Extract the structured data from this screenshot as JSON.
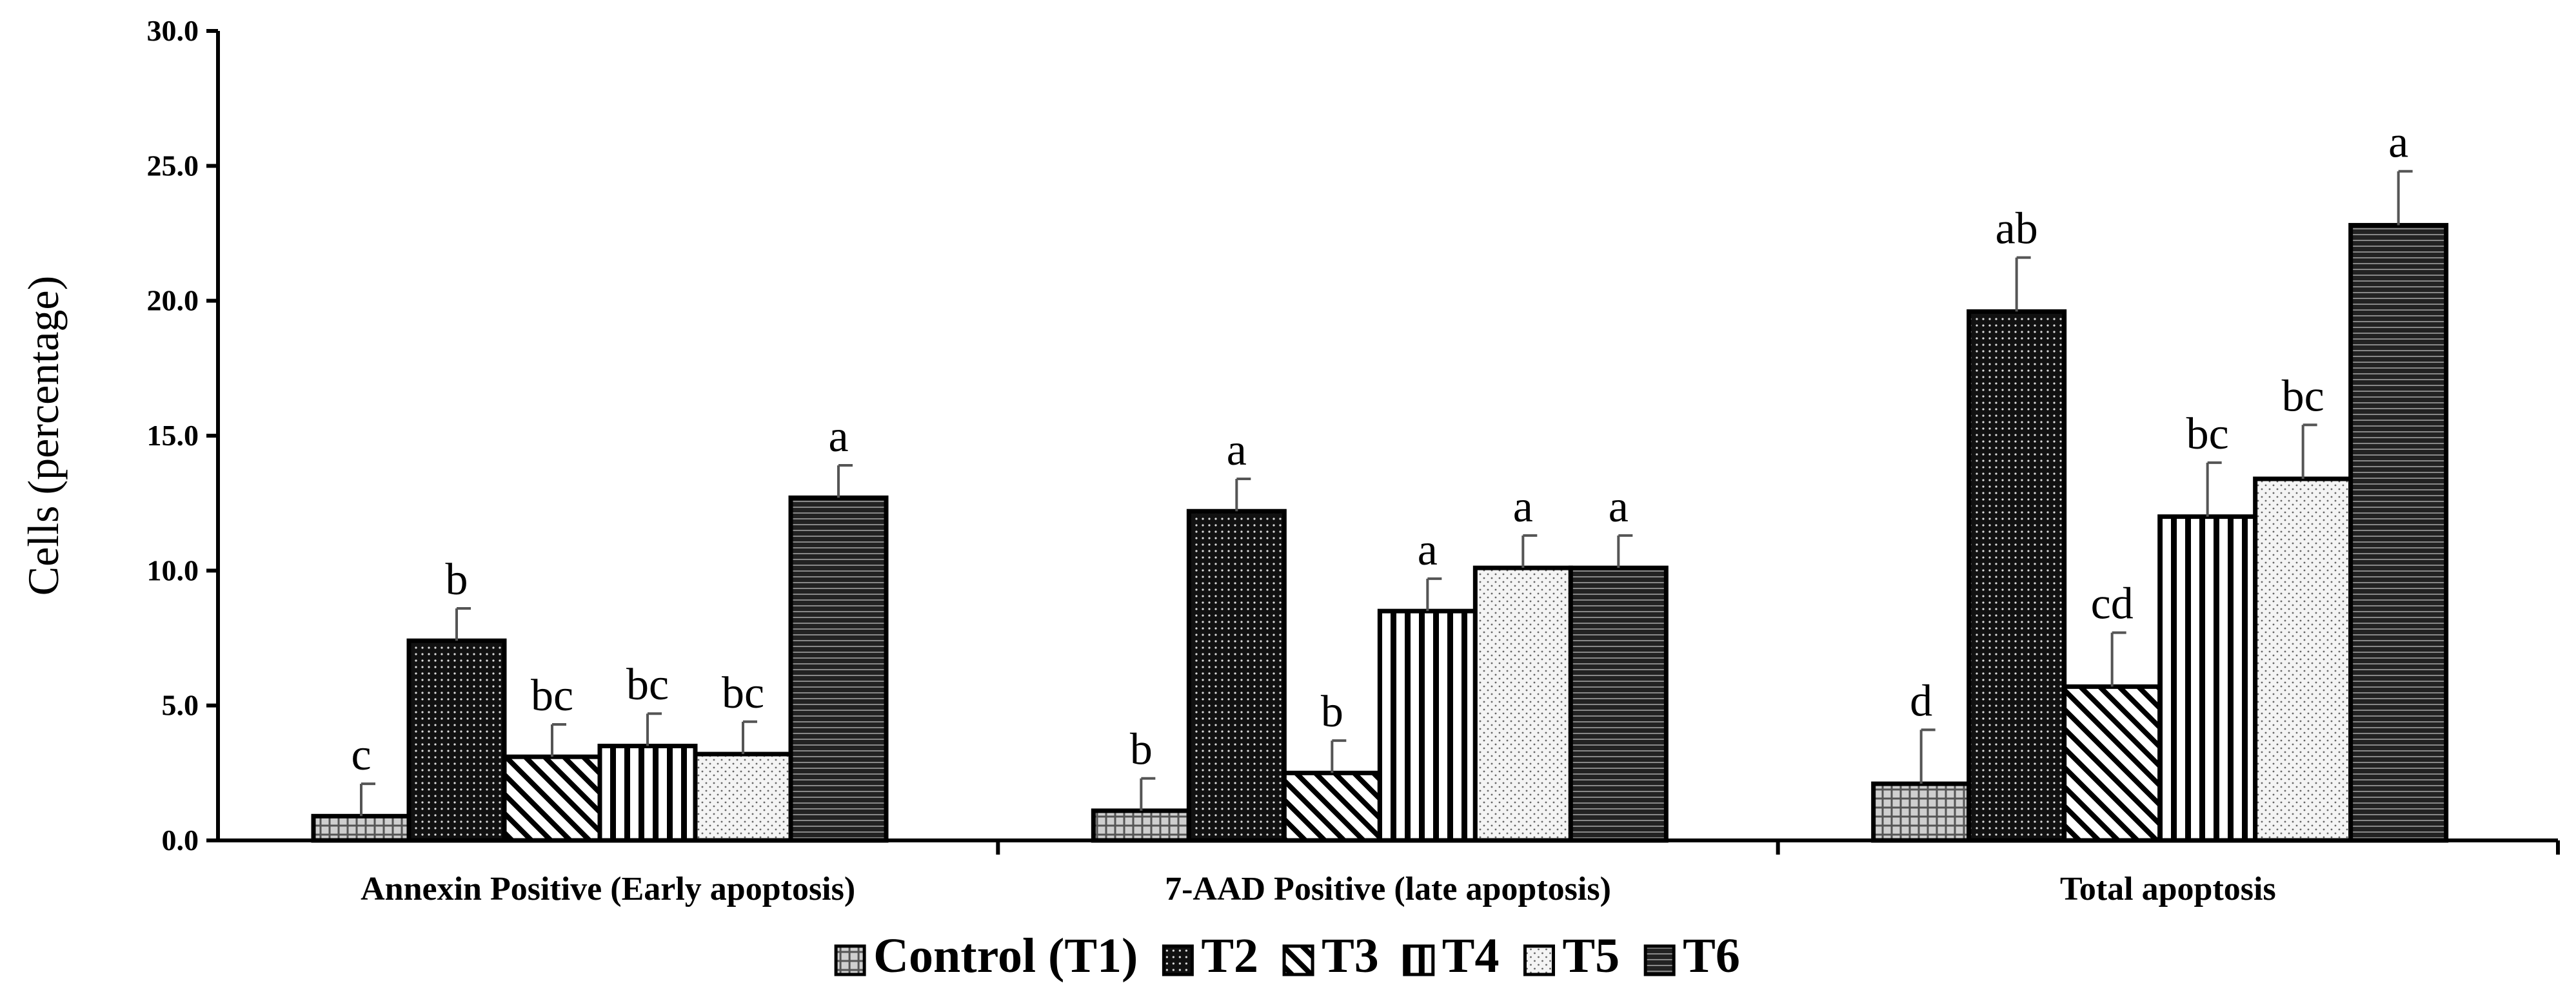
{
  "chart_data": {
    "type": "bar",
    "ylabel": "Cells (percentage)",
    "xlabel": "",
    "ylim": [
      0,
      30
    ],
    "yticks": [
      "0.0",
      "5.0",
      "10.0",
      "15.0",
      "20.0",
      "25.0",
      "30.0"
    ],
    "categories": [
      "Annexin Positive (Early apoptosis)",
      "7-AAD Positive (late apoptosis)",
      "Total apoptosis"
    ],
    "series": [
      {
        "name": "Control (T1)",
        "values": [
          0.9,
          1.1,
          2.1
        ],
        "errors": [
          1.2,
          1.2,
          2.0
        ],
        "letters": [
          "c",
          "b",
          "d"
        ],
        "pattern": "grid"
      },
      {
        "name": "T2",
        "values": [
          7.4,
          12.2,
          19.6
        ],
        "errors": [
          1.2,
          1.2,
          2.0
        ],
        "letters": [
          "b",
          "a",
          "ab"
        ],
        "pattern": "dense-dots"
      },
      {
        "name": "T3",
        "values": [
          3.1,
          2.5,
          5.7
        ],
        "errors": [
          1.2,
          1.2,
          2.0
        ],
        "letters": [
          "bc",
          "b",
          "cd"
        ],
        "pattern": "diagonal"
      },
      {
        "name": "T4",
        "values": [
          3.5,
          8.5,
          12.0
        ],
        "errors": [
          1.2,
          1.2,
          2.0
        ],
        "letters": [
          "bc",
          "a",
          "bc"
        ],
        "pattern": "vertical"
      },
      {
        "name": "T5",
        "values": [
          3.2,
          10.1,
          13.4
        ],
        "errors": [
          1.2,
          1.2,
          2.0
        ],
        "letters": [
          "bc",
          "a",
          "bc"
        ],
        "pattern": "light-dots"
      },
      {
        "name": "T6",
        "values": [
          12.7,
          10.1,
          22.8
        ],
        "errors": [
          1.2,
          1.2,
          2.0
        ],
        "letters": [
          "a",
          "a",
          "a"
        ],
        "pattern": "horizontal"
      }
    ],
    "grid": false,
    "legend_position": "bottom"
  }
}
